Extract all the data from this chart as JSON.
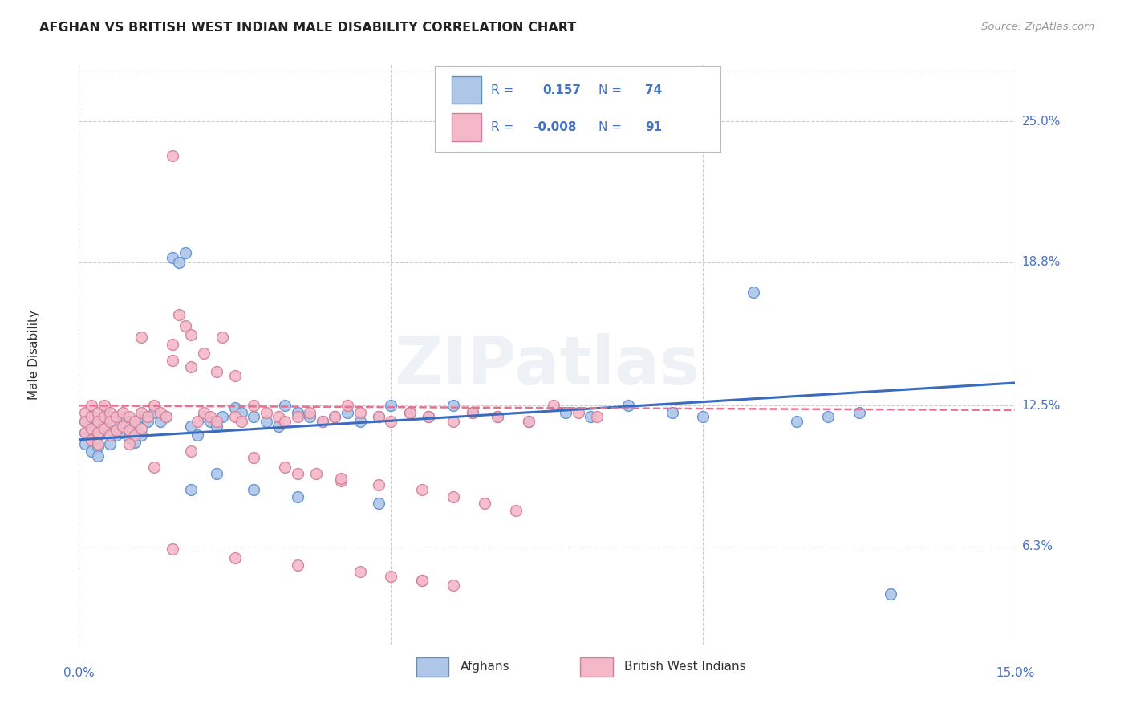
{
  "title": "AFGHAN VS BRITISH WEST INDIAN MALE DISABILITY CORRELATION CHART",
  "source": "Source: ZipAtlas.com",
  "ylabel": "Male Disability",
  "ytick_labels": [
    "25.0%",
    "18.8%",
    "12.5%",
    "6.3%"
  ],
  "ytick_values": [
    0.25,
    0.188,
    0.125,
    0.063
  ],
  "xmin": 0.0,
  "xmax": 0.15,
  "ymin": 0.02,
  "ymax": 0.275,
  "afghan_color": "#aec6e8",
  "afghan_edge": "#5b8fd4",
  "bwi_color": "#f5b8c8",
  "bwi_edge": "#d08098",
  "afghan_line_color": "#3a6bbf",
  "bwi_line_color": "#e87090",
  "watermark": "ZIPatlas",
  "background_color": "#ffffff",
  "grid_color": "#cccccc",
  "label_color": "#4472c4",
  "text_color": "#333333",
  "afghan_x": [
    0.001,
    0.001,
    0.001,
    0.002,
    0.002,
    0.002,
    0.002,
    0.003,
    0.003,
    0.003,
    0.003,
    0.004,
    0.004,
    0.005,
    0.005,
    0.005,
    0.006,
    0.006,
    0.007,
    0.007,
    0.008,
    0.008,
    0.009,
    0.009,
    0.01,
    0.01,
    0.011,
    0.012,
    0.013,
    0.014,
    0.015,
    0.016,
    0.017,
    0.018,
    0.019,
    0.02,
    0.021,
    0.022,
    0.023,
    0.025,
    0.026,
    0.028,
    0.03,
    0.032,
    0.033,
    0.035,
    0.037,
    0.039,
    0.041,
    0.043,
    0.045,
    0.048,
    0.05,
    0.053,
    0.056,
    0.06,
    0.063,
    0.067,
    0.072,
    0.078,
    0.082,
    0.088,
    0.095,
    0.1,
    0.108,
    0.115,
    0.12,
    0.125,
    0.13,
    0.022,
    0.018,
    0.028,
    0.035,
    0.048
  ],
  "afghan_y": [
    0.118,
    0.113,
    0.108,
    0.12,
    0.115,
    0.11,
    0.105,
    0.118,
    0.112,
    0.107,
    0.103,
    0.122,
    0.116,
    0.12,
    0.114,
    0.108,
    0.118,
    0.112,
    0.12,
    0.113,
    0.118,
    0.111,
    0.116,
    0.109,
    0.12,
    0.112,
    0.118,
    0.122,
    0.118,
    0.12,
    0.19,
    0.188,
    0.192,
    0.116,
    0.112,
    0.12,
    0.118,
    0.116,
    0.12,
    0.124,
    0.122,
    0.12,
    0.118,
    0.116,
    0.125,
    0.122,
    0.12,
    0.118,
    0.12,
    0.122,
    0.118,
    0.12,
    0.125,
    0.122,
    0.12,
    0.125,
    0.122,
    0.12,
    0.118,
    0.122,
    0.12,
    0.125,
    0.122,
    0.12,
    0.175,
    0.118,
    0.12,
    0.122,
    0.042,
    0.095,
    0.088,
    0.088,
    0.085,
    0.082
  ],
  "bwi_x": [
    0.001,
    0.001,
    0.001,
    0.002,
    0.002,
    0.002,
    0.002,
    0.003,
    0.003,
    0.003,
    0.003,
    0.004,
    0.004,
    0.004,
    0.005,
    0.005,
    0.005,
    0.006,
    0.006,
    0.007,
    0.007,
    0.008,
    0.008,
    0.009,
    0.009,
    0.01,
    0.01,
    0.011,
    0.012,
    0.013,
    0.014,
    0.015,
    0.016,
    0.017,
    0.018,
    0.019,
    0.02,
    0.021,
    0.022,
    0.023,
    0.025,
    0.026,
    0.028,
    0.03,
    0.032,
    0.033,
    0.035,
    0.037,
    0.039,
    0.041,
    0.043,
    0.045,
    0.048,
    0.05,
    0.053,
    0.056,
    0.06,
    0.063,
    0.067,
    0.072,
    0.076,
    0.08,
    0.083,
    0.01,
    0.015,
    0.02,
    0.015,
    0.018,
    0.022,
    0.025,
    0.012,
    0.035,
    0.042,
    0.055,
    0.008,
    0.018,
    0.028,
    0.033,
    0.038,
    0.042,
    0.048,
    0.055,
    0.06,
    0.065,
    0.07,
    0.015,
    0.025,
    0.035,
    0.045,
    0.05,
    0.055,
    0.06
  ],
  "bwi_y": [
    0.122,
    0.118,
    0.113,
    0.125,
    0.12,
    0.115,
    0.11,
    0.122,
    0.118,
    0.113,
    0.108,
    0.125,
    0.12,
    0.115,
    0.122,
    0.118,
    0.112,
    0.12,
    0.114,
    0.122,
    0.116,
    0.12,
    0.114,
    0.118,
    0.112,
    0.122,
    0.115,
    0.12,
    0.125,
    0.122,
    0.12,
    0.235,
    0.165,
    0.16,
    0.156,
    0.118,
    0.122,
    0.12,
    0.118,
    0.155,
    0.12,
    0.118,
    0.125,
    0.122,
    0.12,
    0.118,
    0.12,
    0.122,
    0.118,
    0.12,
    0.125,
    0.122,
    0.12,
    0.118,
    0.122,
    0.12,
    0.118,
    0.122,
    0.12,
    0.118,
    0.125,
    0.122,
    0.12,
    0.155,
    0.152,
    0.148,
    0.145,
    0.142,
    0.14,
    0.138,
    0.098,
    0.095,
    0.092,
    0.048,
    0.108,
    0.105,
    0.102,
    0.098,
    0.095,
    0.093,
    0.09,
    0.088,
    0.085,
    0.082,
    0.079,
    0.062,
    0.058,
    0.055,
    0.052,
    0.05,
    0.048,
    0.046
  ]
}
